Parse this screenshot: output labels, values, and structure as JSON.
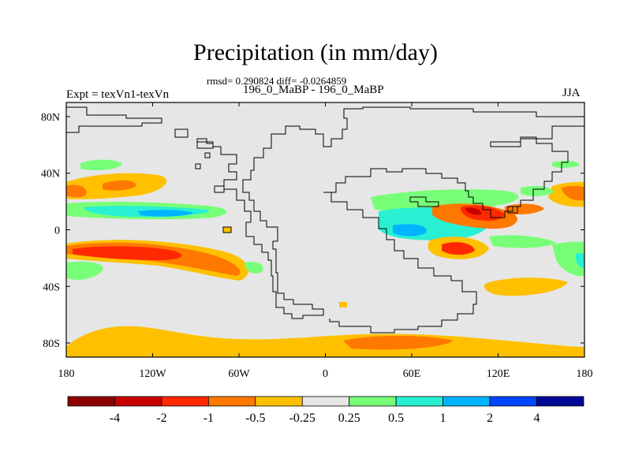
{
  "header": {
    "title": "Precipitation (in mm/day)",
    "subtitle": "rmsd= 0.290824 diff= -0.0264859",
    "experiment": "Expt = texVn1-texVn",
    "case": "196_0_MaBP - 196_0_MaBP",
    "season": "JJA"
  },
  "map": {
    "projection": "cylindrical equidistant",
    "lon_range": [
      -180,
      180
    ],
    "lat_range": [
      -90,
      90
    ],
    "x_ticks": [
      {
        "lon": -180,
        "label": "180"
      },
      {
        "lon": -120,
        "label": "120W"
      },
      {
        "lon": -60,
        "label": "60W"
      },
      {
        "lon": 0,
        "label": "0"
      },
      {
        "lon": 60,
        "label": "60E"
      },
      {
        "lon": 120,
        "label": "120E"
      },
      {
        "lon": 180,
        "label": "180"
      }
    ],
    "y_ticks": [
      {
        "lat": 80,
        "label": "80N"
      },
      {
        "lat": 40,
        "label": "40N"
      },
      {
        "lat": 0,
        "label": "0"
      },
      {
        "lat": -40,
        "label": "40S"
      },
      {
        "lat": -80,
        "label": "80S"
      }
    ],
    "background_color": "#e6e6e6"
  },
  "colorbar": {
    "colors": [
      "#8c0000",
      "#c80000",
      "#ff2800",
      "#ff7800",
      "#ffc000",
      "#e6e6e6",
      "#78ff78",
      "#28f0d2",
      "#00b4ff",
      "#0046ff",
      "#000a96"
    ],
    "labels": [
      "-4",
      "-2",
      "-1",
      "-0.5",
      "-0.25",
      "0.25",
      "0.5",
      "1",
      "2",
      "4"
    ]
  },
  "chart_data": {
    "type": "heatmap",
    "variable": "Precipitation difference",
    "units": "mm/day",
    "levels": [
      -4,
      -2,
      -1,
      -0.5,
      -0.25,
      0.25,
      0.5,
      1,
      2,
      4
    ],
    "anomaly_regions": [
      {
        "name": "north-pacific-band",
        "lon_range": [
          -180,
          -120
        ],
        "lat_range": [
          25,
          40
        ],
        "category": "-0.5 to -0.25"
      },
      {
        "name": "north-pacific-core",
        "lon_range": [
          -175,
          -135
        ],
        "lat_range": [
          28,
          36
        ],
        "category": "-1 to -0.5"
      },
      {
        "name": "itcz-pacific-band",
        "lon_range": [
          -180,
          -80
        ],
        "lat_range": [
          10,
          20
        ],
        "category": "0.25 to 0.5"
      },
      {
        "name": "itcz-pacific-core",
        "lon_range": [
          -150,
          -95
        ],
        "lat_range": [
          11,
          16
        ],
        "category": "1 to 2"
      },
      {
        "name": "spcz-band",
        "lon_range": [
          -180,
          -75
        ],
        "lat_range": [
          -30,
          -8
        ],
        "category": "-0.5 to -0.25"
      },
      {
        "name": "spcz-core",
        "lon_range": [
          -175,
          -90
        ],
        "lat_range": [
          -24,
          -10
        ],
        "category": "-2 to -1"
      },
      {
        "name": "south-pacific-green",
        "lon_range": [
          -180,
          -145
        ],
        "lat_range": [
          -30,
          -18
        ],
        "category": "0.25 to 0.5"
      },
      {
        "name": "north-atlantic-green",
        "lon_range": [
          -165,
          -135
        ],
        "lat_range": [
          44,
          50
        ],
        "category": "0.25 to 0.5"
      },
      {
        "name": "asian-monsoon",
        "lon_range": [
          80,
          140
        ],
        "lat_range": [
          5,
          25
        ],
        "category": "-1 to -0.5"
      },
      {
        "name": "indian-ocean-south",
        "lon_range": [
          80,
          115
        ],
        "lat_range": [
          -20,
          -5
        ],
        "category": "-1 to -0.5"
      },
      {
        "name": "west-pacific-green",
        "lon_range": [
          20,
          110
        ],
        "lat_range": [
          15,
          25
        ],
        "category": "0.25 to 0.5"
      },
      {
        "name": "indian-ocean-cyan",
        "lon_range": [
          40,
          110
        ],
        "lat_range": [
          -10,
          10
        ],
        "category": "0.5 to 1"
      },
      {
        "name": "north-east-pacific",
        "lon_range": [
          150,
          180
        ],
        "lat_range": [
          20,
          35
        ],
        "category": "-0.5 to -0.25"
      },
      {
        "name": "south-indian-yellow",
        "lon_range": [
          100,
          160
        ],
        "lat_range": [
          -45,
          -30
        ],
        "category": "-0.5 to -0.25"
      },
      {
        "name": "southern-ocean-band",
        "lon_range": [
          -180,
          180
        ],
        "lat_range": [
          -90,
          -65
        ],
        "category": "-0.5 to -0.25"
      },
      {
        "name": "southern-ocean-core",
        "lon_range": [
          20,
          90
        ],
        "lat_range": [
          -80,
          -73
        ],
        "category": "-1 to -0.5"
      }
    ]
  }
}
